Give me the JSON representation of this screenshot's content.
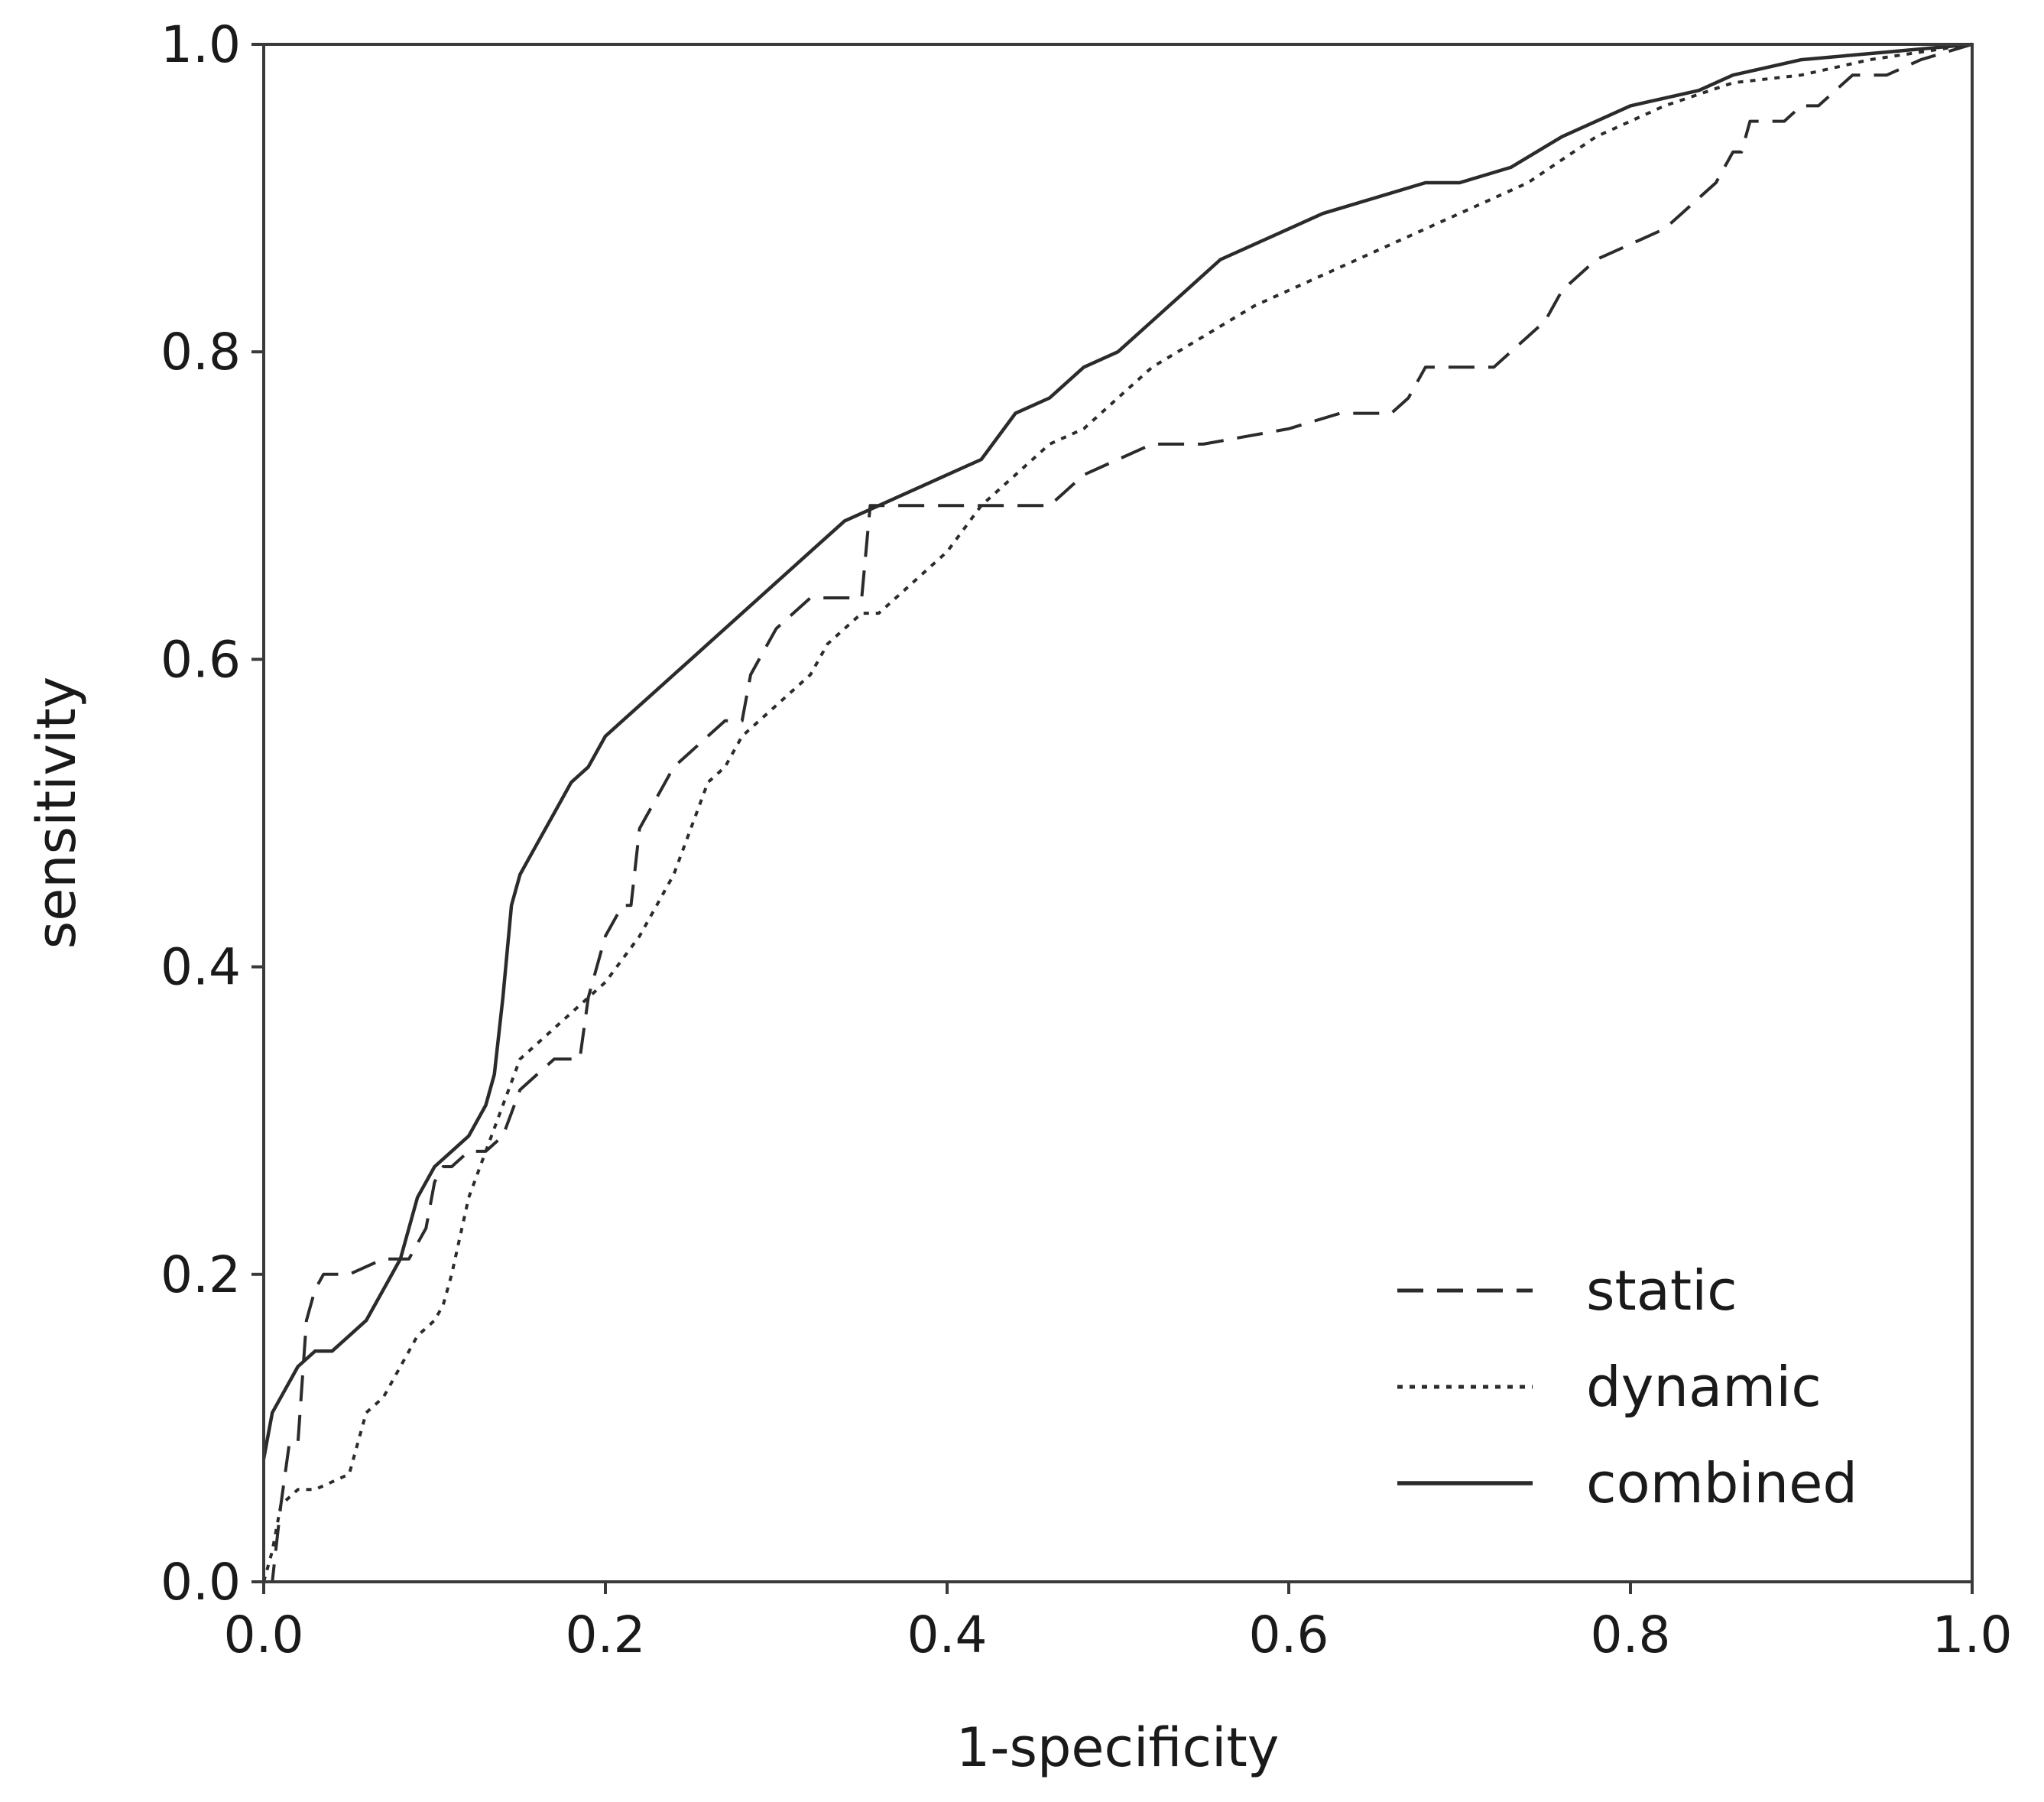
{
  "chart_data": {
    "type": "line",
    "xlabel": "1-specificity",
    "ylabel": "sensitivity",
    "xlim": [
      0.0,
      1.0
    ],
    "ylim": [
      0.0,
      1.0
    ],
    "xticks": [
      "0.0",
      "0.2",
      "0.4",
      "0.6",
      "0.8",
      "1.0"
    ],
    "yticks": [
      "0.0",
      "0.2",
      "0.4",
      "0.6",
      "0.8",
      "1.0"
    ],
    "grid": false,
    "legend": "bottom-right",
    "series": [
      {
        "name": "static",
        "style": "dashed",
        "x": [
          0.0,
          0.005,
          0.01,
          0.015,
          0.02,
          0.025,
          0.03,
          0.035,
          0.04,
          0.05,
          0.07,
          0.085,
          0.09,
          0.095,
          0.1,
          0.105,
          0.11,
          0.12,
          0.13,
          0.14,
          0.15,
          0.16,
          0.17,
          0.18,
          0.185,
          0.19,
          0.2,
          0.205,
          0.21,
          0.215,
          0.22,
          0.225,
          0.23,
          0.24,
          0.25,
          0.26,
          0.27,
          0.28,
          0.285,
          0.29,
          0.3,
          0.31,
          0.32,
          0.33,
          0.34,
          0.35,
          0.355,
          0.36,
          0.38,
          0.4,
          0.43,
          0.46,
          0.47,
          0.48,
          0.5,
          0.52,
          0.55,
          0.6,
          0.63,
          0.66,
          0.67,
          0.68,
          0.72,
          0.73,
          0.74,
          0.75,
          0.76,
          0.78,
          0.8,
          0.82,
          0.83,
          0.84,
          0.85,
          0.86,
          0.865,
          0.87,
          0.89,
          0.9,
          0.91,
          0.92,
          0.93,
          0.95,
          0.97,
          1.0
        ],
        "y": [
          0.0,
          0.0,
          0.05,
          0.09,
          0.09,
          0.17,
          0.19,
          0.2,
          0.2,
          0.2,
          0.21,
          0.21,
          0.22,
          0.23,
          0.26,
          0.27,
          0.27,
          0.28,
          0.28,
          0.29,
          0.32,
          0.33,
          0.34,
          0.34,
          0.34,
          0.38,
          0.42,
          0.43,
          0.44,
          0.44,
          0.49,
          0.5,
          0.51,
          0.53,
          0.54,
          0.55,
          0.56,
          0.56,
          0.59,
          0.6,
          0.62,
          0.63,
          0.64,
          0.64,
          0.64,
          0.64,
          0.7,
          0.7,
          0.7,
          0.7,
          0.7,
          0.7,
          0.71,
          0.72,
          0.73,
          0.74,
          0.74,
          0.75,
          0.76,
          0.76,
          0.77,
          0.79,
          0.79,
          0.8,
          0.81,
          0.82,
          0.84,
          0.86,
          0.87,
          0.88,
          0.89,
          0.9,
          0.91,
          0.93,
          0.93,
          0.95,
          0.95,
          0.96,
          0.96,
          0.97,
          0.98,
          0.98,
          0.99,
          1.0
        ]
      },
      {
        "name": "dynamic",
        "style": "dotted",
        "x": [
          0.0,
          0.005,
          0.01,
          0.02,
          0.03,
          0.04,
          0.05,
          0.055,
          0.06,
          0.07,
          0.08,
          0.085,
          0.09,
          0.1,
          0.105,
          0.11,
          0.12,
          0.13,
          0.14,
          0.15,
          0.16,
          0.17,
          0.18,
          0.19,
          0.2,
          0.22,
          0.23,
          0.24,
          0.25,
          0.26,
          0.27,
          0.28,
          0.3,
          0.31,
          0.32,
          0.33,
          0.34,
          0.35,
          0.36,
          0.37,
          0.39,
          0.4,
          0.42,
          0.44,
          0.46,
          0.48,
          0.5,
          0.52,
          0.55,
          0.58,
          0.62,
          0.66,
          0.7,
          0.74,
          0.78,
          0.82,
          0.86,
          0.9,
          0.94,
          1.0
        ],
        "y": [
          0.0,
          0.02,
          0.05,
          0.06,
          0.06,
          0.065,
          0.07,
          0.09,
          0.11,
          0.12,
          0.14,
          0.15,
          0.16,
          0.17,
          0.18,
          0.2,
          0.25,
          0.28,
          0.31,
          0.34,
          0.35,
          0.36,
          0.37,
          0.38,
          0.39,
          0.42,
          0.44,
          0.46,
          0.49,
          0.52,
          0.53,
          0.55,
          0.57,
          0.58,
          0.59,
          0.61,
          0.62,
          0.63,
          0.63,
          0.64,
          0.66,
          0.67,
          0.7,
          0.72,
          0.74,
          0.75,
          0.77,
          0.79,
          0.81,
          0.83,
          0.85,
          0.87,
          0.89,
          0.91,
          0.94,
          0.96,
          0.975,
          0.98,
          0.99,
          1.0
        ]
      },
      {
        "name": "combined",
        "style": "solid",
        "x": [
          0.0,
          0.005,
          0.01,
          0.02,
          0.03,
          0.04,
          0.05,
          0.06,
          0.07,
          0.08,
          0.09,
          0.1,
          0.11,
          0.12,
          0.13,
          0.135,
          0.14,
          0.145,
          0.15,
          0.155,
          0.16,
          0.17,
          0.18,
          0.19,
          0.2,
          0.21,
          0.22,
          0.23,
          0.24,
          0.25,
          0.26,
          0.28,
          0.3,
          0.32,
          0.34,
          0.36,
          0.38,
          0.4,
          0.42,
          0.44,
          0.46,
          0.48,
          0.5,
          0.52,
          0.54,
          0.56,
          0.58,
          0.6,
          0.62,
          0.65,
          0.68,
          0.7,
          0.73,
          0.76,
          0.8,
          0.84,
          0.86,
          0.88,
          0.9,
          0.95,
          1.0
        ],
        "y": [
          0.08,
          0.11,
          0.12,
          0.14,
          0.15,
          0.15,
          0.16,
          0.17,
          0.19,
          0.21,
          0.25,
          0.27,
          0.28,
          0.29,
          0.31,
          0.33,
          0.38,
          0.44,
          0.46,
          0.47,
          0.48,
          0.5,
          0.52,
          0.53,
          0.55,
          0.56,
          0.57,
          0.58,
          0.59,
          0.6,
          0.61,
          0.63,
          0.65,
          0.67,
          0.69,
          0.7,
          0.71,
          0.72,
          0.73,
          0.76,
          0.77,
          0.79,
          0.8,
          0.82,
          0.84,
          0.86,
          0.87,
          0.88,
          0.89,
          0.9,
          0.91,
          0.91,
          0.92,
          0.94,
          0.96,
          0.97,
          0.98,
          0.985,
          0.99,
          0.995,
          1.0
        ]
      }
    ]
  }
}
